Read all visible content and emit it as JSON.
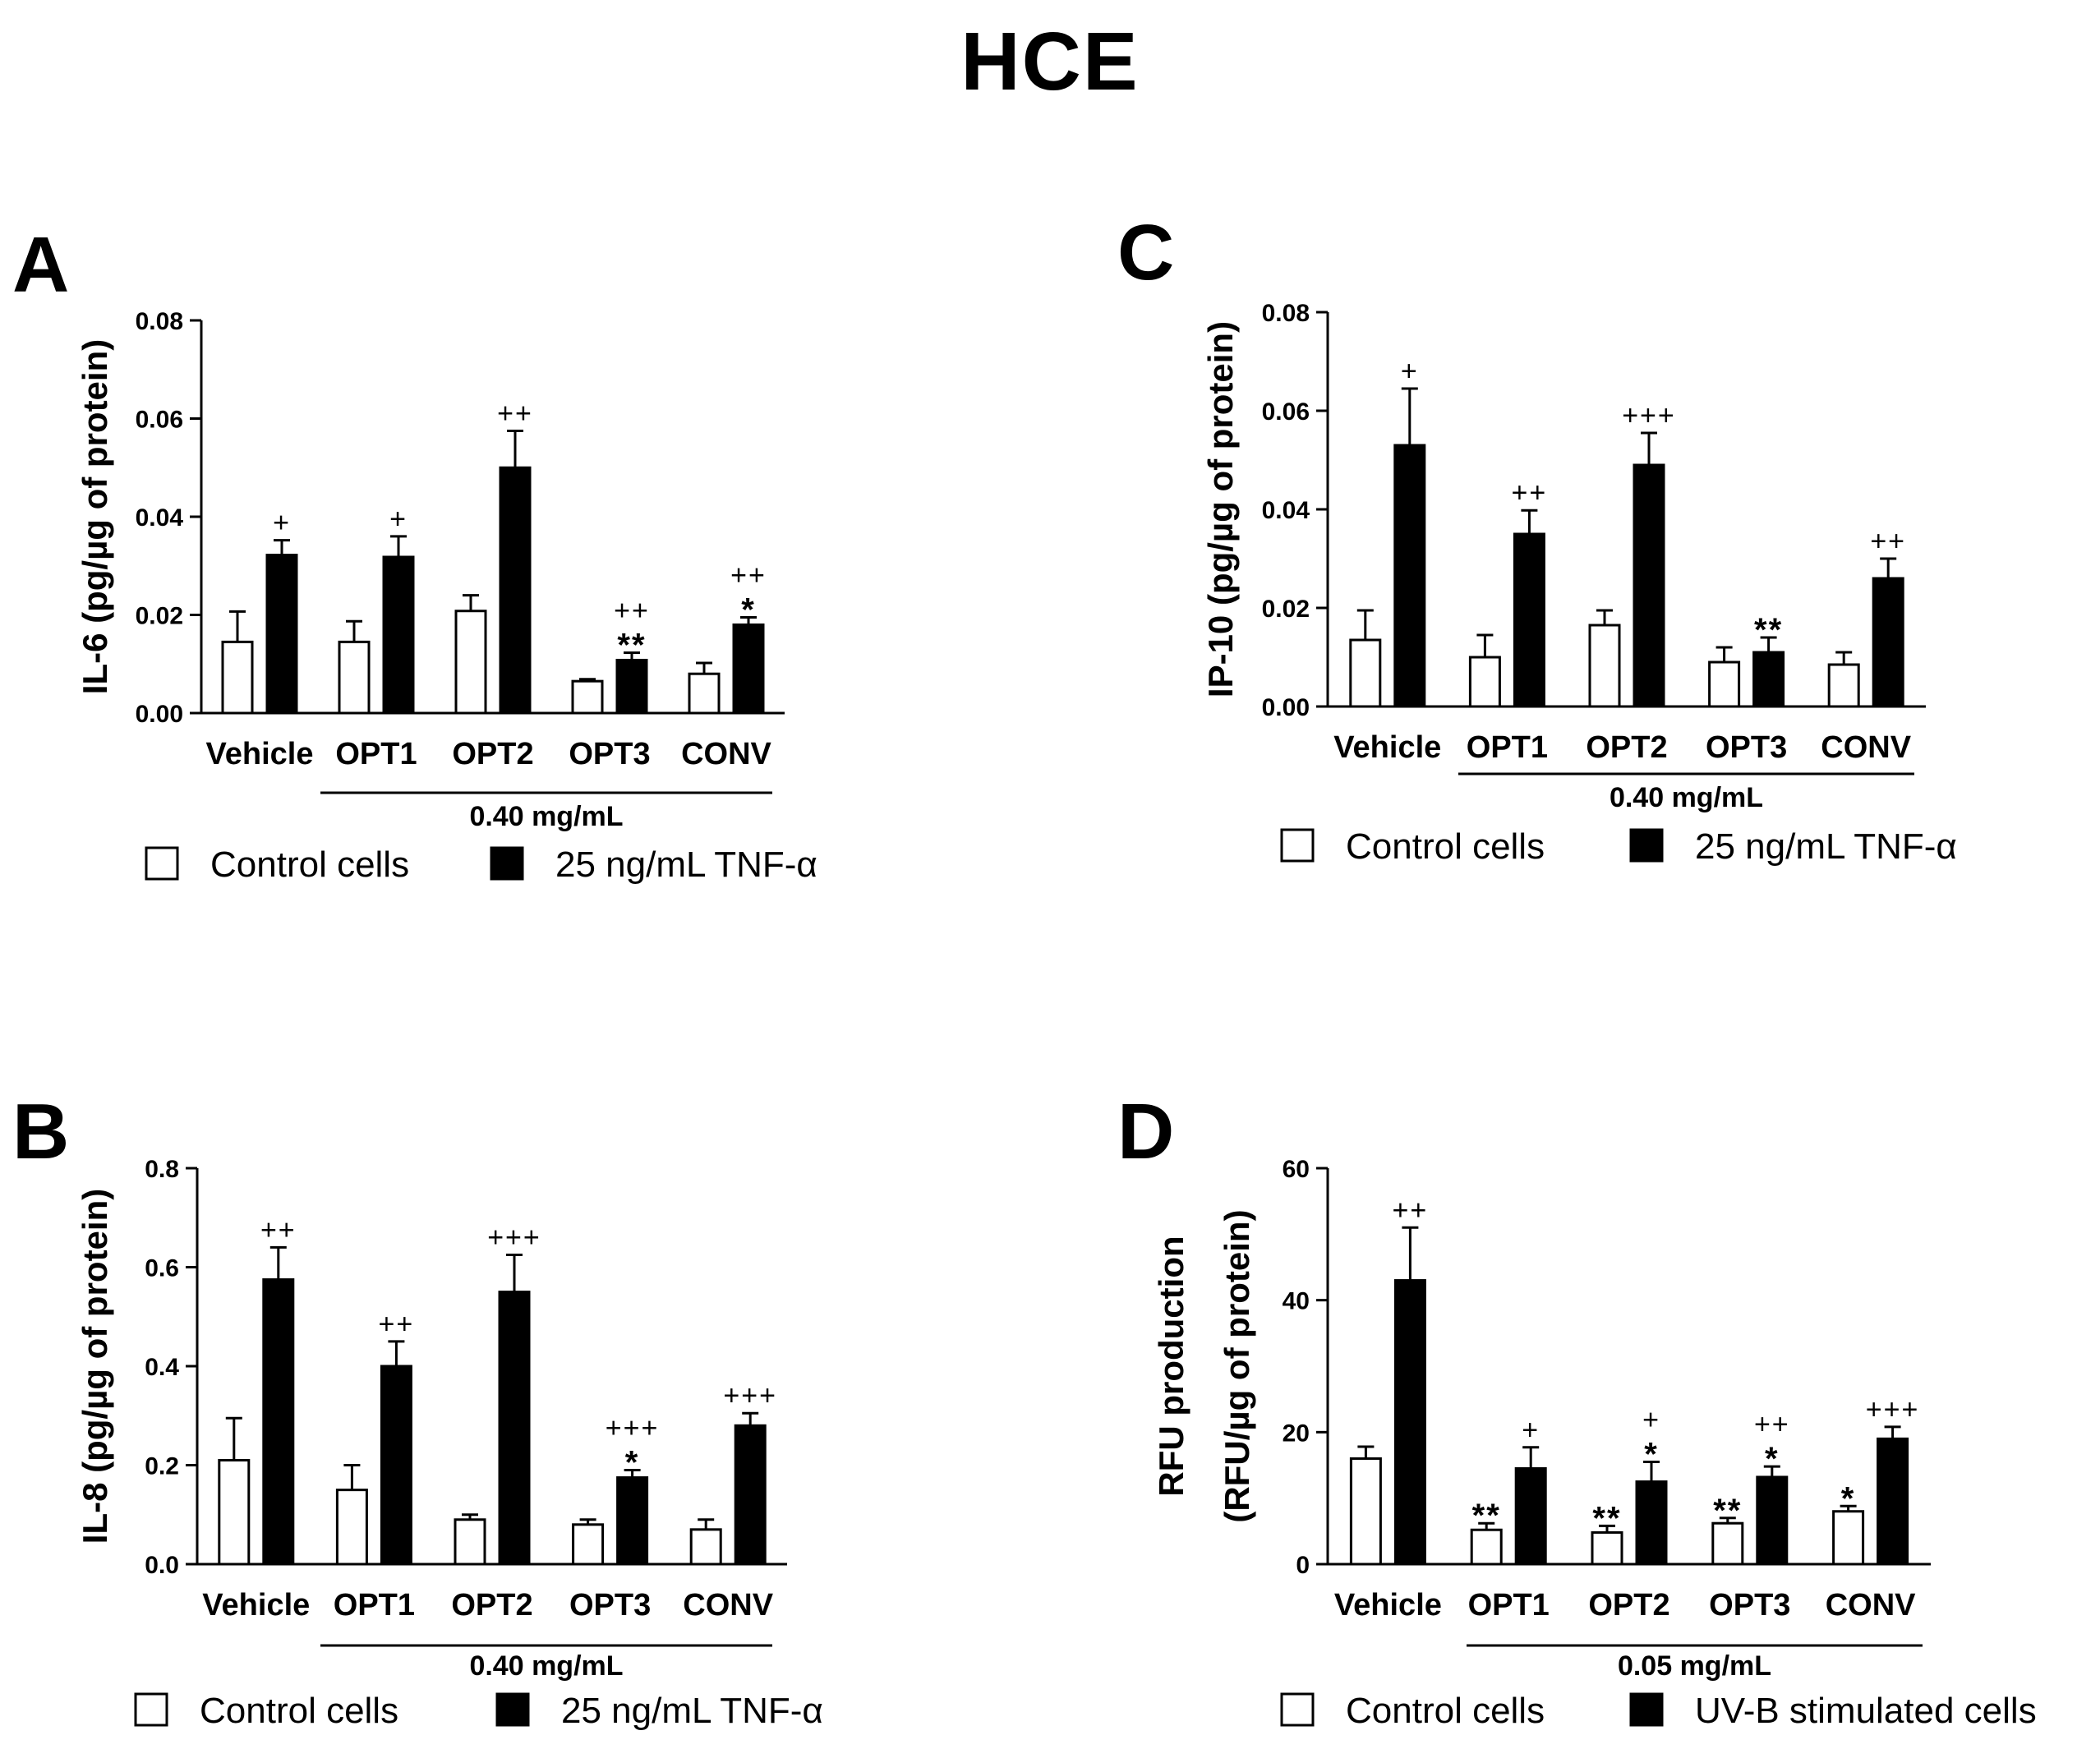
{
  "figure_title": "HCE",
  "chart_data": [
    {
      "type": "bar",
      "panel_letter": "A",
      "title": "",
      "ylabel": "IL-6 (pg/µg of protein)",
      "xlabel": "",
      "ylim": [
        0,
        0.08
      ],
      "yticks": [
        "0.00",
        "0.02",
        "0.04",
        "0.06",
        "0.08"
      ],
      "categories": [
        "Vehicle",
        "OPT1",
        "OPT2",
        "OPT3",
        "CONV"
      ],
      "group_label": "0.40 mg/mL",
      "series": [
        {
          "name": "Control cells",
          "values": [
            0.0145,
            0.0145,
            0.0208,
            0.0065,
            0.008
          ],
          "errors": [
            0.0062,
            0.0042,
            0.0032,
            0.0004,
            0.0022
          ],
          "marks": [
            "",
            "",
            "",
            "",
            ""
          ]
        },
        {
          "name": "25 ng/mL TNF-α",
          "values": [
            0.0322,
            0.0318,
            0.05,
            0.0108,
            0.018
          ],
          "errors": [
            0.003,
            0.0042,
            0.0075,
            0.0015,
            0.0015
          ],
          "marks": [
            "+",
            "+",
            "++",
            "++\n**",
            "++\n*"
          ]
        }
      ],
      "legend": [
        "Control cells",
        "25 ng/mL TNF-α"
      ]
    },
    {
      "type": "bar",
      "panel_letter": "B",
      "title": "",
      "ylabel": "IL-8 (pg/µg of protein)",
      "xlabel": "",
      "ylim": [
        0,
        0.8
      ],
      "yticks": [
        "0.0",
        "0.2",
        "0.4",
        "0.6",
        "0.8"
      ],
      "categories": [
        "Vehicle",
        "OPT1",
        "OPT2",
        "OPT3",
        "CONV"
      ],
      "group_label": "0.40 mg/mL",
      "series": [
        {
          "name": "Control cells",
          "values": [
            0.21,
            0.15,
            0.09,
            0.08,
            0.07
          ],
          "errors": [
            0.085,
            0.05,
            0.01,
            0.01,
            0.02
          ],
          "marks": [
            "",
            "",
            "",
            "",
            ""
          ]
        },
        {
          "name": "25 ng/mL TNF-α",
          "values": [
            0.575,
            0.4,
            0.55,
            0.175,
            0.28
          ],
          "errors": [
            0.065,
            0.05,
            0.075,
            0.015,
            0.025
          ],
          "marks": [
            "++",
            "++",
            "+++",
            "+++\n*",
            "+++"
          ]
        }
      ],
      "legend": [
        "Control cells",
        "25 ng/mL TNF-α"
      ]
    },
    {
      "type": "bar",
      "panel_letter": "C",
      "title": "",
      "ylabel": "IP-10 (pg/µg of protein)",
      "xlabel": "",
      "ylim": [
        0,
        0.08
      ],
      "yticks": [
        "0.00",
        "0.02",
        "0.04",
        "0.06",
        "0.08"
      ],
      "categories": [
        "Vehicle",
        "OPT1",
        "OPT2",
        "OPT3",
        "CONV"
      ],
      "group_label": "0.40 mg/mL",
      "series": [
        {
          "name": "Control cells",
          "values": [
            0.0135,
            0.01,
            0.0165,
            0.009,
            0.0085
          ],
          "errors": [
            0.006,
            0.0045,
            0.003,
            0.003,
            0.0025
          ],
          "marks": [
            "",
            "",
            "",
            "",
            ""
          ]
        },
        {
          "name": "25 ng/mL TNF-α",
          "values": [
            0.053,
            0.035,
            0.049,
            0.011,
            0.026
          ],
          "errors": [
            0.0115,
            0.0048,
            0.0065,
            0.003,
            0.004
          ],
          "marks": [
            "+",
            "++",
            "+++",
            "**",
            "++"
          ]
        }
      ],
      "legend": [
        "Control cells",
        "25 ng/mL TNF-α"
      ]
    },
    {
      "type": "bar",
      "panel_letter": "D",
      "title": "",
      "ylabel": "RFU production",
      "ylabel2": "(RFU/µg of protein)",
      "xlabel": "",
      "ylim": [
        0,
        60
      ],
      "yticks": [
        "0",
        "20",
        "40",
        "60"
      ],
      "categories": [
        "Vehicle",
        "OPT1",
        "OPT2",
        "OPT3",
        "CONV"
      ],
      "group_label": "0.05 mg/mL",
      "series": [
        {
          "name": "Control cells",
          "values": [
            16,
            5.2,
            4.8,
            6.2,
            8.0
          ],
          "errors": [
            1.8,
            1.0,
            1.0,
            0.8,
            0.8
          ],
          "marks": [
            "",
            "**",
            "**",
            "**",
            "*"
          ]
        },
        {
          "name": "UV-B stimulated cells",
          "values": [
            43,
            14.5,
            12.5,
            13.2,
            19
          ],
          "errors": [
            8,
            3.2,
            3.0,
            1.6,
            1.8
          ],
          "marks": [
            "++",
            "+",
            "+\n*",
            "++\n*",
            "+++"
          ]
        }
      ],
      "legend": [
        "Control cells",
        "UV-B stimulated cells"
      ]
    }
  ]
}
